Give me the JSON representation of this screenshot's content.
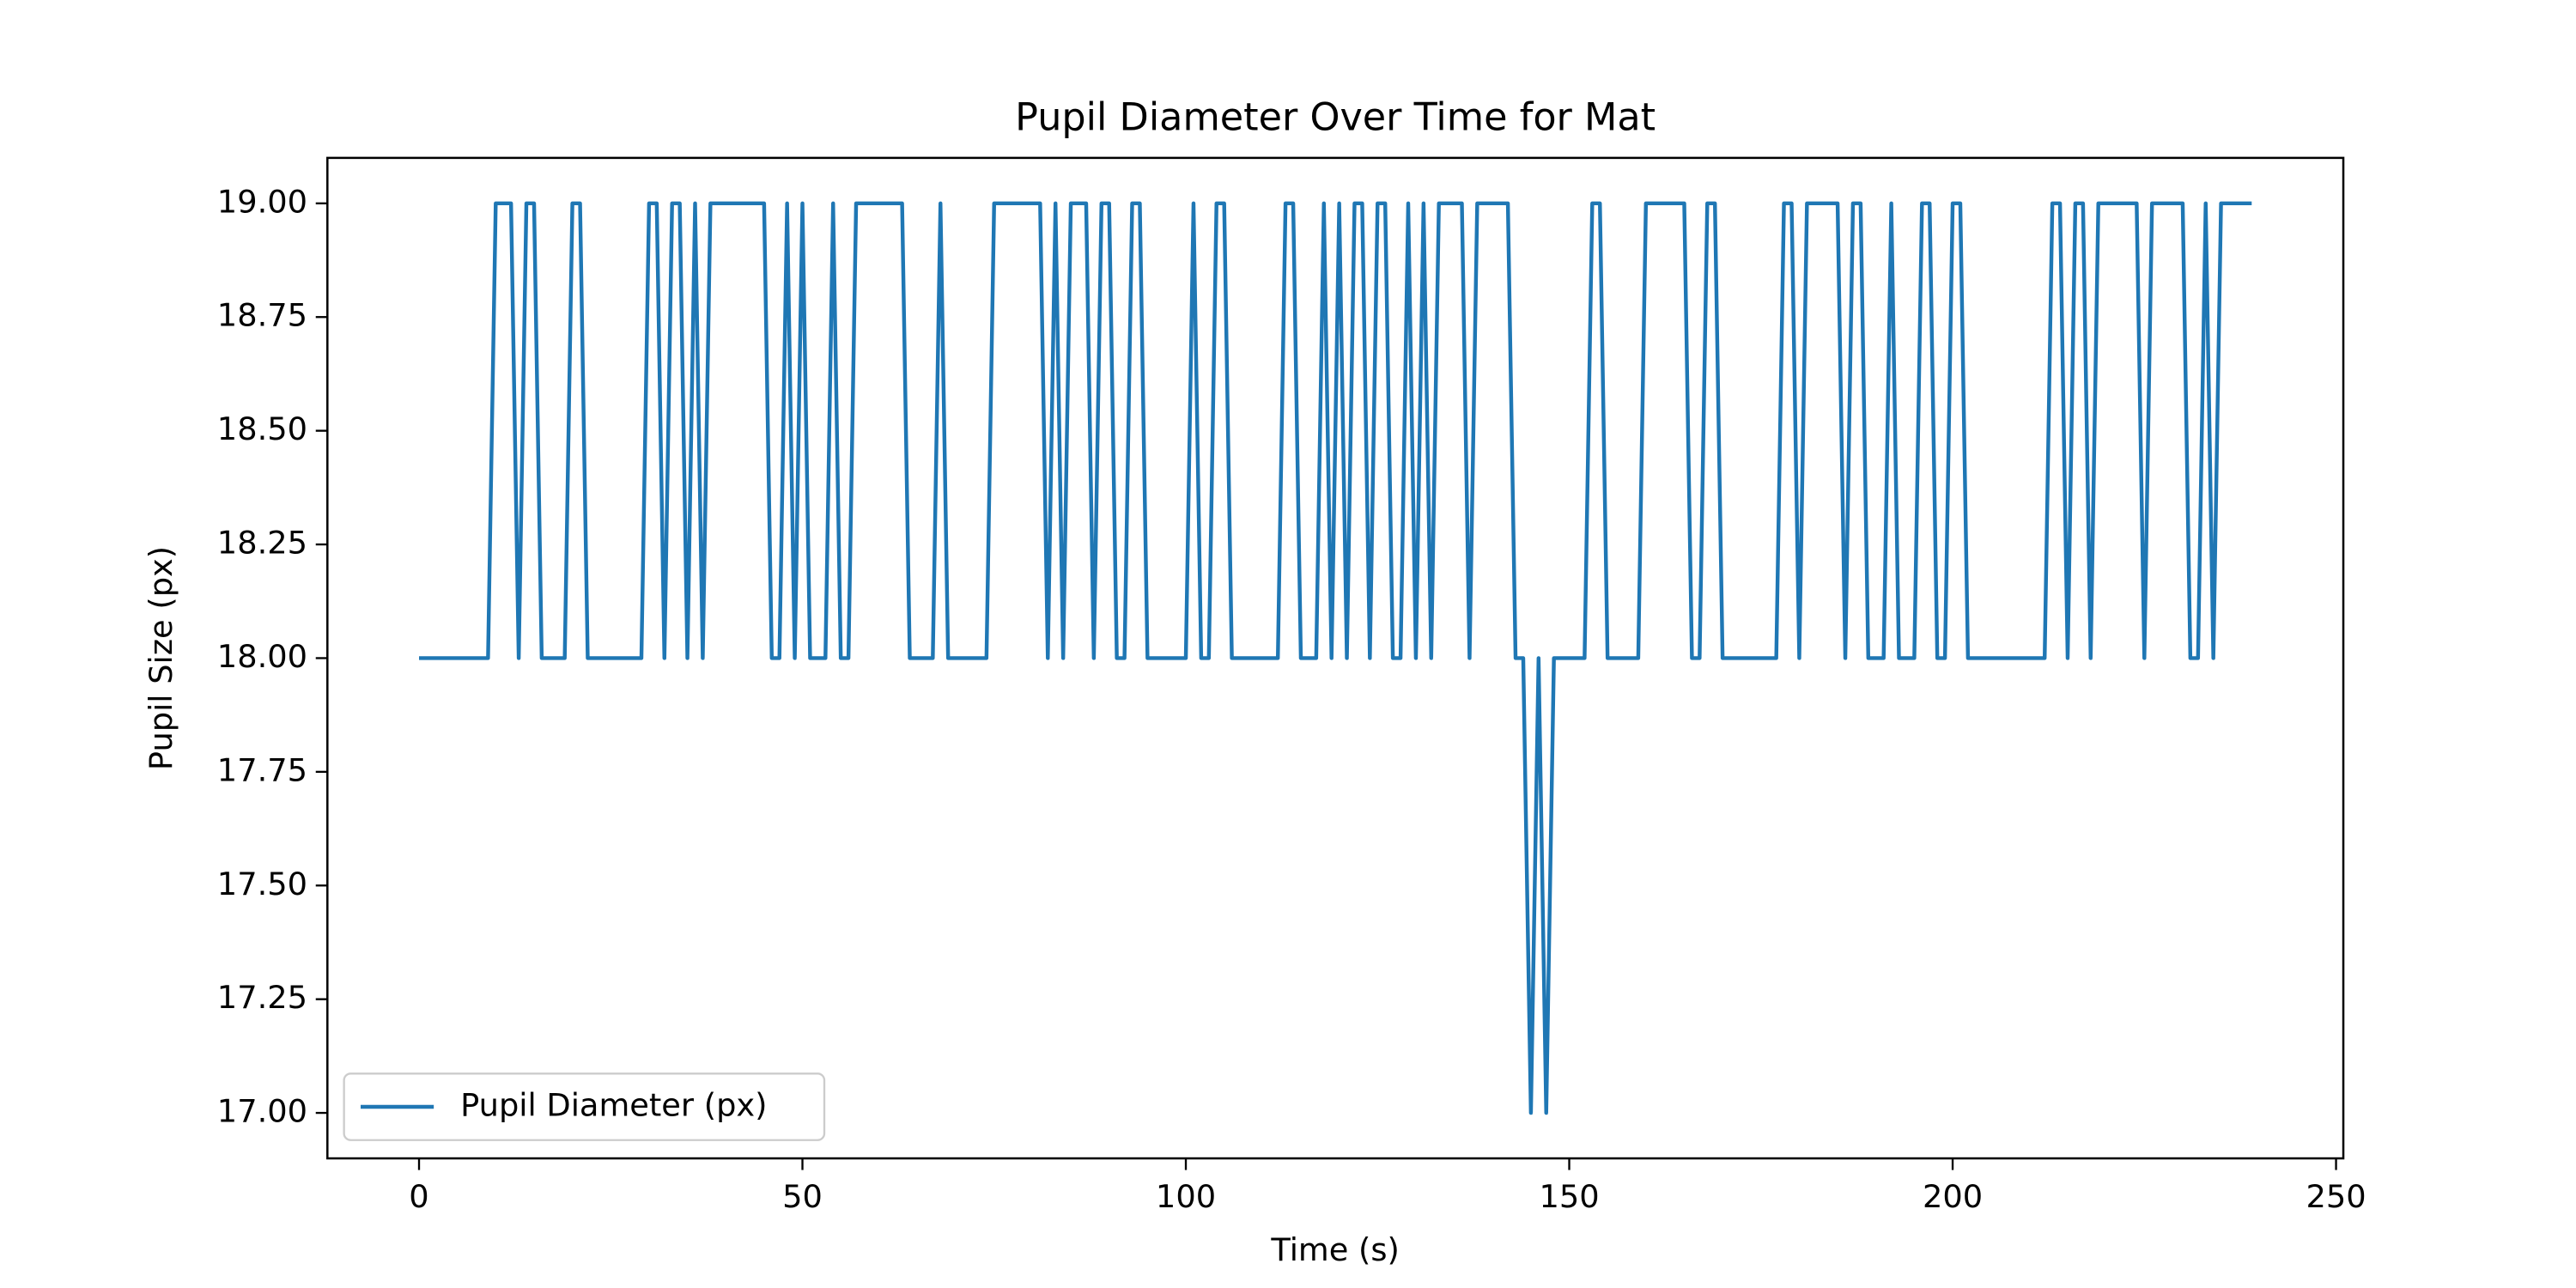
{
  "chart_data": {
    "type": "line",
    "title": "Pupil Diameter Over Time for Mat",
    "x_label": "Time (s)",
    "y_label": "Pupil Size (px)",
    "x": [
      0,
      1,
      2,
      3,
      4,
      5,
      6,
      7,
      8,
      9,
      10,
      11,
      12,
      13,
      14,
      15,
      16,
      17,
      18,
      19,
      20,
      21,
      22,
      23,
      24,
      25,
      26,
      27,
      28,
      29,
      30,
      31,
      32,
      33,
      34,
      35,
      36,
      37,
      38,
      39,
      40,
      41,
      42,
      43,
      44,
      45,
      46,
      47,
      48,
      49,
      50,
      51,
      52,
      53,
      54,
      55,
      56,
      57,
      58,
      59,
      60,
      61,
      62,
      63,
      64,
      65,
      66,
      67,
      68,
      69,
      70,
      71,
      72,
      73,
      74,
      75,
      76,
      77,
      78,
      79,
      80,
      81,
      82,
      83,
      84,
      85,
      86,
      87,
      88,
      89,
      90,
      91,
      92,
      93,
      94,
      95,
      96,
      97,
      98,
      99,
      100,
      101,
      102,
      103,
      104,
      105,
      106,
      107,
      108,
      109,
      110,
      111,
      112,
      113,
      114,
      115,
      116,
      117,
      118,
      119,
      120,
      121,
      122,
      123,
      124,
      125,
      126,
      127,
      128,
      129,
      130,
      131,
      132,
      133,
      134,
      135,
      136,
      137,
      138,
      139,
      140,
      141,
      142,
      143,
      144,
      145,
      146,
      147,
      148,
      149,
      150,
      151,
      152,
      153,
      154,
      155,
      156,
      157,
      158,
      159,
      160,
      161,
      162,
      163,
      164,
      165,
      166,
      167,
      168,
      169,
      170,
      171,
      172,
      173,
      174,
      175,
      176,
      177,
      178,
      179,
      180,
      181,
      182,
      183,
      184,
      185,
      186,
      187,
      188,
      189,
      190,
      191,
      192,
      193,
      194,
      195,
      196,
      197,
      198,
      199,
      200,
      201,
      202,
      203,
      204,
      205,
      206,
      207,
      208,
      209,
      210,
      211,
      212,
      213,
      214,
      215,
      216,
      217,
      218,
      219,
      220,
      221,
      222,
      223,
      224,
      225,
      226,
      227,
      228,
      229,
      230,
      231,
      232,
      233,
      234,
      235,
      236,
      237,
      238,
      239
    ],
    "series": [
      {
        "name": "Pupil Diameter (px)",
        "color": "#1f77b4",
        "values": [
          18,
          18,
          18,
          18,
          18,
          18,
          18,
          18,
          18,
          18,
          19,
          19,
          19,
          18,
          19,
          19,
          18,
          18,
          18,
          18,
          19,
          19,
          18,
          18,
          18,
          18,
          18,
          18,
          18,
          18,
          19,
          19,
          18,
          19,
          19,
          18,
          19,
          18,
          19,
          19,
          19,
          19,
          19,
          19,
          19,
          19,
          18,
          18,
          19,
          18,
          19,
          18,
          18,
          18,
          19,
          18,
          18,
          19,
          19,
          19,
          19,
          19,
          19,
          19,
          18,
          18,
          18,
          18,
          19,
          18,
          18,
          18,
          18,
          18,
          18,
          19,
          19,
          19,
          19,
          19,
          19,
          19,
          18,
          19,
          18,
          19,
          19,
          19,
          18,
          19,
          19,
          18,
          18,
          19,
          19,
          18,
          18,
          18,
          18,
          18,
          18,
          19,
          18,
          18,
          19,
          19,
          18,
          18,
          18,
          18,
          18,
          18,
          18,
          19,
          19,
          18,
          18,
          18,
          19,
          18,
          19,
          18,
          19,
          19,
          18,
          19,
          19,
          18,
          18,
          19,
          18,
          19,
          18,
          19,
          19,
          19,
          19,
          18,
          19,
          19,
          19,
          19,
          19,
          18,
          18,
          17,
          18,
          17,
          18,
          18,
          18,
          18,
          18,
          19,
          19,
          18,
          18,
          18,
          18,
          18,
          19,
          19,
          19,
          19,
          19,
          19,
          18,
          18,
          19,
          19,
          18,
          18,
          18,
          18,
          18,
          18,
          18,
          18,
          19,
          19,
          18,
          19,
          19,
          19,
          19,
          19,
          18,
          19,
          19,
          18,
          18,
          18,
          19,
          18,
          18,
          18,
          19,
          19,
          18,
          18,
          19,
          19,
          18,
          18,
          18,
          18,
          18,
          18,
          18,
          18,
          18,
          18,
          18,
          19,
          19,
          18,
          19,
          19,
          18,
          19,
          19,
          19,
          19,
          19,
          19,
          18,
          19,
          19,
          19,
          19,
          19,
          18,
          18,
          19,
          18,
          19,
          19,
          19,
          19,
          19
        ]
      }
    ],
    "xlim": [
      -11.95,
      250.95
    ],
    "ylim": [
      16.9,
      19.1
    ],
    "xticks": [
      0,
      50,
      100,
      150,
      200,
      250
    ],
    "yticks": [
      {
        "value": 17,
        "label": "17.00"
      },
      {
        "value": 17.25,
        "label": "17.25"
      },
      {
        "value": 17.5,
        "label": "17.50"
      },
      {
        "value": 17.75,
        "label": "17.75"
      },
      {
        "value": 18,
        "label": "18.00"
      },
      {
        "value": 18.25,
        "label": "18.25"
      },
      {
        "value": 18.5,
        "label": "18.50"
      },
      {
        "value": 18.75,
        "label": "18.75"
      },
      {
        "value": 19,
        "label": "19.00"
      }
    ],
    "legend": "lower left",
    "grid": false
  }
}
